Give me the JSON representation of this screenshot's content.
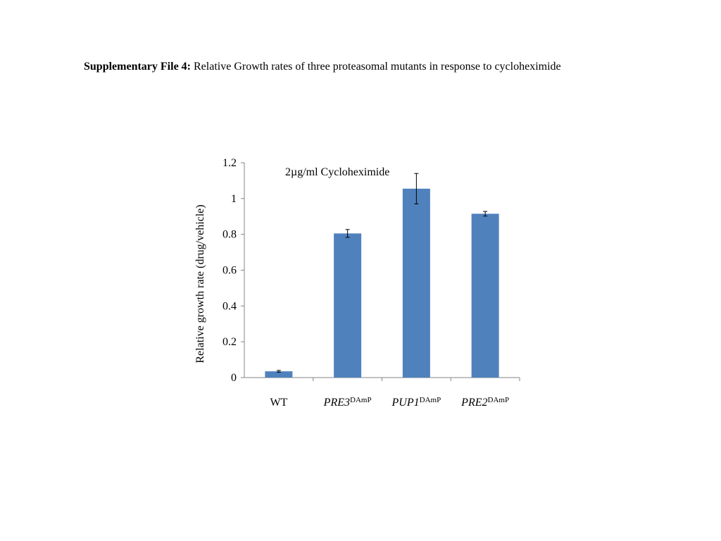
{
  "caption": {
    "bold_part": "Supplementary File 4:",
    "rest": " Relative Growth rates of three proteasomal mutants in response to cycloheximide"
  },
  "chart_data": {
    "type": "bar",
    "title": "",
    "annotation": "2µg/ml Cycloheximide",
    "xlabel": "",
    "ylabel": "Relative growth rate (drug/vehicle)",
    "ylim": [
      0,
      1.2
    ],
    "yticks": [
      "0",
      "0.2",
      "0.4",
      "0.6",
      "0.8",
      "1",
      "1.2"
    ],
    "grid": false,
    "legend": "none",
    "bar_color": "#4F81BD",
    "categories": [
      {
        "name": "WT",
        "superscript": "",
        "italic": false
      },
      {
        "name": "PRE3",
        "superscript": "DAmP",
        "italic": true
      },
      {
        "name": "PUP1",
        "superscript": "DAmP",
        "italic": true
      },
      {
        "name": "PRE2",
        "superscript": "DAmP",
        "italic": true
      }
    ],
    "values": [
      0.035,
      0.805,
      1.055,
      0.915
    ],
    "error": [
      0.005,
      0.022,
      0.085,
      0.013
    ]
  }
}
